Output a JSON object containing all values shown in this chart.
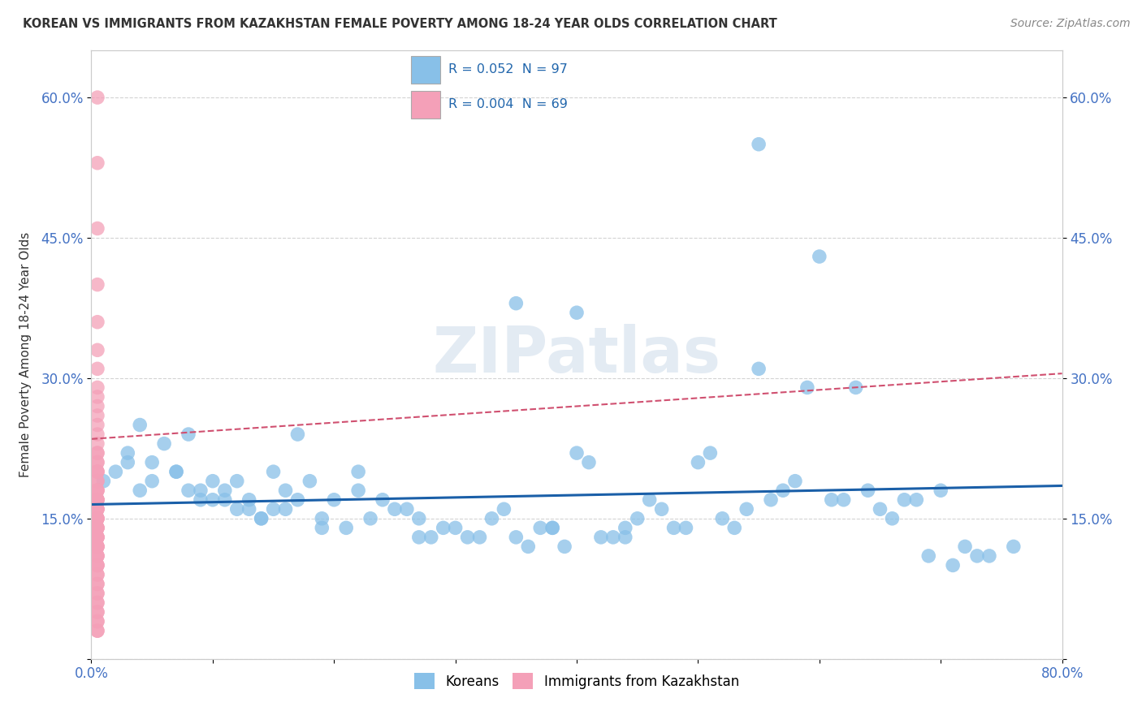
{
  "title": "KOREAN VS IMMIGRANTS FROM KAZAKHSTAN FEMALE POVERTY AMONG 18-24 YEAR OLDS CORRELATION CHART",
  "source": "Source: ZipAtlas.com",
  "ylabel": "Female Poverty Among 18-24 Year Olds",
  "watermark": "ZIPatlas",
  "xlim": [
    0.0,
    0.8
  ],
  "ylim": [
    0.0,
    0.65
  ],
  "blue_color": "#88c0e8",
  "pink_color": "#f4a0b8",
  "blue_line_color": "#1a5fa8",
  "pink_line_color": "#d05070",
  "grid_color": "#c8c8c8",
  "background_color": "#ffffff",
  "tick_color": "#4472c4",
  "korean_x": [
    0.02,
    0.03,
    0.01,
    0.05,
    0.06,
    0.04,
    0.03,
    0.07,
    0.05,
    0.08,
    0.09,
    0.07,
    0.1,
    0.11,
    0.09,
    0.12,
    0.13,
    0.1,
    0.14,
    0.11,
    0.15,
    0.13,
    0.16,
    0.12,
    0.17,
    0.15,
    0.18,
    0.14,
    0.2,
    0.16,
    0.22,
    0.19,
    0.24,
    0.21,
    0.26,
    0.23,
    0.28,
    0.25,
    0.3,
    0.27,
    0.32,
    0.29,
    0.34,
    0.31,
    0.36,
    0.33,
    0.38,
    0.35,
    0.4,
    0.37,
    0.42,
    0.39,
    0.44,
    0.41,
    0.46,
    0.43,
    0.48,
    0.45,
    0.5,
    0.47,
    0.52,
    0.49,
    0.54,
    0.51,
    0.56,
    0.53,
    0.58,
    0.55,
    0.6,
    0.57,
    0.62,
    0.59,
    0.64,
    0.61,
    0.66,
    0.63,
    0.68,
    0.65,
    0.7,
    0.67,
    0.72,
    0.69,
    0.74,
    0.71,
    0.76,
    0.73,
    0.04,
    0.08,
    0.17,
    0.22,
    0.35,
    0.4,
    0.55,
    0.38,
    0.27,
    0.19,
    0.44
  ],
  "korean_y": [
    0.2,
    0.22,
    0.19,
    0.21,
    0.23,
    0.18,
    0.21,
    0.2,
    0.19,
    0.18,
    0.17,
    0.2,
    0.19,
    0.17,
    0.18,
    0.19,
    0.16,
    0.17,
    0.15,
    0.18,
    0.2,
    0.17,
    0.18,
    0.16,
    0.17,
    0.16,
    0.19,
    0.15,
    0.17,
    0.16,
    0.18,
    0.15,
    0.17,
    0.14,
    0.16,
    0.15,
    0.13,
    0.16,
    0.14,
    0.15,
    0.13,
    0.14,
    0.16,
    0.13,
    0.12,
    0.15,
    0.14,
    0.13,
    0.22,
    0.14,
    0.13,
    0.12,
    0.14,
    0.21,
    0.17,
    0.13,
    0.14,
    0.15,
    0.21,
    0.16,
    0.15,
    0.14,
    0.16,
    0.22,
    0.17,
    0.14,
    0.19,
    0.55,
    0.43,
    0.18,
    0.17,
    0.29,
    0.18,
    0.17,
    0.15,
    0.29,
    0.17,
    0.16,
    0.18,
    0.17,
    0.12,
    0.11,
    0.11,
    0.1,
    0.12,
    0.11,
    0.25,
    0.24,
    0.24,
    0.2,
    0.38,
    0.37,
    0.31,
    0.14,
    0.13,
    0.14,
    0.13
  ],
  "kaz_x": [
    0.005,
    0.005,
    0.005,
    0.005,
    0.005,
    0.005,
    0.005,
    0.005,
    0.005,
    0.005,
    0.005,
    0.005,
    0.005,
    0.005,
    0.005,
    0.005,
    0.005,
    0.005,
    0.005,
    0.005,
    0.005,
    0.005,
    0.005,
    0.005,
    0.005,
    0.005,
    0.005,
    0.005,
    0.005,
    0.005,
    0.005,
    0.005,
    0.005,
    0.005,
    0.005,
    0.005,
    0.005,
    0.005,
    0.005,
    0.005,
    0.005,
    0.005,
    0.005,
    0.005,
    0.005,
    0.005,
    0.005,
    0.005,
    0.005,
    0.005,
    0.005,
    0.005,
    0.005,
    0.005,
    0.005,
    0.005,
    0.005,
    0.005,
    0.005,
    0.005,
    0.005,
    0.005,
    0.005,
    0.005,
    0.005,
    0.005,
    0.005,
    0.005,
    0.005
  ],
  "kaz_y": [
    0.6,
    0.53,
    0.46,
    0.4,
    0.36,
    0.33,
    0.31,
    0.29,
    0.28,
    0.27,
    0.26,
    0.25,
    0.24,
    0.23,
    0.22,
    0.22,
    0.21,
    0.21,
    0.2,
    0.2,
    0.2,
    0.19,
    0.19,
    0.18,
    0.18,
    0.18,
    0.17,
    0.17,
    0.17,
    0.17,
    0.16,
    0.16,
    0.16,
    0.15,
    0.15,
    0.15,
    0.15,
    0.14,
    0.14,
    0.14,
    0.14,
    0.13,
    0.13,
    0.13,
    0.13,
    0.12,
    0.12,
    0.12,
    0.12,
    0.11,
    0.11,
    0.11,
    0.1,
    0.1,
    0.1,
    0.09,
    0.09,
    0.08,
    0.08,
    0.07,
    0.07,
    0.06,
    0.06,
    0.05,
    0.05,
    0.04,
    0.04,
    0.03,
    0.03
  ],
  "korean_trend": [
    0.0,
    0.8,
    0.165,
    0.185
  ],
  "kaz_trend": [
    0.0,
    0.8,
    0.235,
    0.305
  ]
}
